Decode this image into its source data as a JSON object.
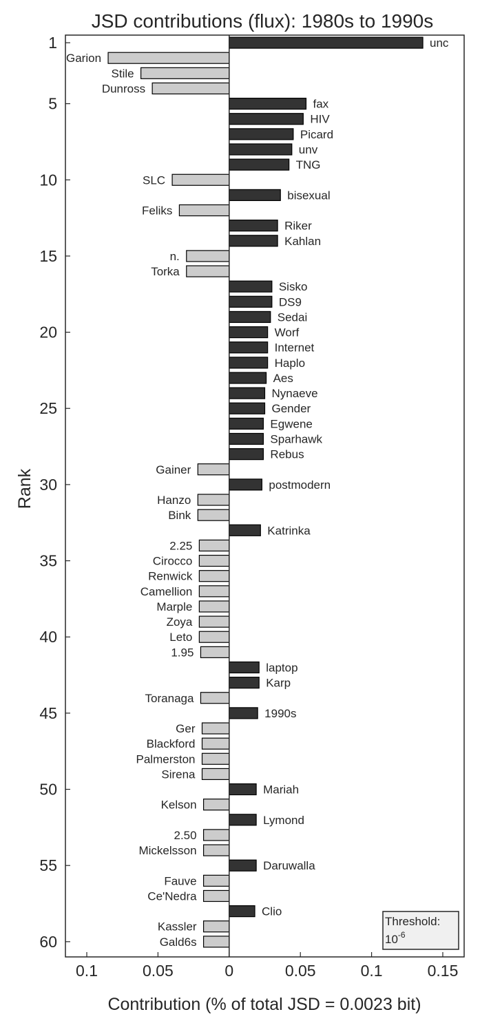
{
  "chart_data": {
    "type": "bar",
    "orientation": "horizontal",
    "title": "JSD contributions (flux): 1980s to 1990s",
    "xlabel": "Contribution (% of total JSD = 0.0023 bit)",
    "ylabel": "Rank",
    "xlim": [
      -0.115,
      0.165
    ],
    "ylim": [
      0.5,
      61
    ],
    "xticks": [
      {
        "value": -0.1,
        "label": "0.1"
      },
      {
        "value": -0.05,
        "label": "0.05"
      },
      {
        "value": 0,
        "label": "0"
      },
      {
        "value": 0.05,
        "label": "0.05"
      },
      {
        "value": 0.1,
        "label": "0.1"
      },
      {
        "value": 0.15,
        "label": "0.15"
      }
    ],
    "yticks": [
      1,
      5,
      10,
      15,
      20,
      25,
      30,
      35,
      40,
      45,
      50,
      55,
      60
    ],
    "grid": false,
    "colors": {
      "positive": "#333333",
      "negative": "#cccccc",
      "edge": "#000000"
    },
    "bars": [
      {
        "rank": 1,
        "label": "unc",
        "value": 0.136
      },
      {
        "rank": 2,
        "label": "Garion",
        "value": -0.085
      },
      {
        "rank": 3,
        "label": "Stile",
        "value": -0.062
      },
      {
        "rank": 4,
        "label": "Dunross",
        "value": -0.054
      },
      {
        "rank": 5,
        "label": "fax",
        "value": 0.054
      },
      {
        "rank": 6,
        "label": "HIV",
        "value": 0.052
      },
      {
        "rank": 7,
        "label": "Picard",
        "value": 0.045
      },
      {
        "rank": 8,
        "label": "unv",
        "value": 0.044
      },
      {
        "rank": 9,
        "label": "TNG",
        "value": 0.042
      },
      {
        "rank": 10,
        "label": "SLC",
        "value": -0.04
      },
      {
        "rank": 11,
        "label": "bisexual",
        "value": 0.036
      },
      {
        "rank": 12,
        "label": "Feliks",
        "value": -0.035
      },
      {
        "rank": 13,
        "label": "Riker",
        "value": 0.034
      },
      {
        "rank": 14,
        "label": "Kahlan",
        "value": 0.034
      },
      {
        "rank": 15,
        "label": "n.",
        "value": -0.03
      },
      {
        "rank": 16,
        "label": "Torka",
        "value": -0.03
      },
      {
        "rank": 17,
        "label": "Sisko",
        "value": 0.03
      },
      {
        "rank": 18,
        "label": "DS9",
        "value": 0.03
      },
      {
        "rank": 19,
        "label": "Sedai",
        "value": 0.029
      },
      {
        "rank": 20,
        "label": "Worf",
        "value": 0.027
      },
      {
        "rank": 21,
        "label": "Internet",
        "value": 0.027
      },
      {
        "rank": 22,
        "label": "Haplo",
        "value": 0.027
      },
      {
        "rank": 23,
        "label": "Aes",
        "value": 0.026
      },
      {
        "rank": 24,
        "label": "Nynaeve",
        "value": 0.025
      },
      {
        "rank": 25,
        "label": "Gender",
        "value": 0.025
      },
      {
        "rank": 26,
        "label": "Egwene",
        "value": 0.024
      },
      {
        "rank": 27,
        "label": "Sparhawk",
        "value": 0.024
      },
      {
        "rank": 28,
        "label": "Rebus",
        "value": 0.024
      },
      {
        "rank": 29,
        "label": "Gainer",
        "value": -0.022
      },
      {
        "rank": 30,
        "label": "postmodern",
        "value": 0.023
      },
      {
        "rank": 31,
        "label": "Hanzo",
        "value": -0.022
      },
      {
        "rank": 32,
        "label": "Bink",
        "value": -0.022
      },
      {
        "rank": 33,
        "label": "Katrinka",
        "value": 0.022
      },
      {
        "rank": 34,
        "label": "2.25",
        "value": -0.021
      },
      {
        "rank": 35,
        "label": "Cirocco",
        "value": -0.021
      },
      {
        "rank": 36,
        "label": "Renwick",
        "value": -0.021
      },
      {
        "rank": 37,
        "label": "Camellion",
        "value": -0.021
      },
      {
        "rank": 38,
        "label": "Marple",
        "value": -0.021
      },
      {
        "rank": 39,
        "label": "Zoya",
        "value": -0.021
      },
      {
        "rank": 40,
        "label": "Leto",
        "value": -0.021
      },
      {
        "rank": 41,
        "label": "1.95",
        "value": -0.02
      },
      {
        "rank": 42,
        "label": "laptop",
        "value": 0.021
      },
      {
        "rank": 43,
        "label": "Karp",
        "value": 0.021
      },
      {
        "rank": 44,
        "label": "Toranaga",
        "value": -0.02
      },
      {
        "rank": 45,
        "label": "1990s",
        "value": 0.02
      },
      {
        "rank": 46,
        "label": "Ger",
        "value": -0.019
      },
      {
        "rank": 47,
        "label": "Blackford",
        "value": -0.019
      },
      {
        "rank": 48,
        "label": "Palmerston",
        "value": -0.019
      },
      {
        "rank": 49,
        "label": "Sirena",
        "value": -0.019
      },
      {
        "rank": 50,
        "label": "Mariah",
        "value": 0.019
      },
      {
        "rank": 51,
        "label": "Kelson",
        "value": -0.018
      },
      {
        "rank": 52,
        "label": "Lymond",
        "value": 0.019
      },
      {
        "rank": 53,
        "label": "2.50",
        "value": -0.018
      },
      {
        "rank": 54,
        "label": "Mickelsson",
        "value": -0.018
      },
      {
        "rank": 55,
        "label": "Daruwalla",
        "value": 0.019
      },
      {
        "rank": 56,
        "label": "Fauve",
        "value": -0.018
      },
      {
        "rank": 57,
        "label": "Ce'Nedra",
        "value": -0.018
      },
      {
        "rank": 58,
        "label": "Clio",
        "value": 0.018
      },
      {
        "rank": 59,
        "label": "Kassler",
        "value": -0.018
      },
      {
        "rank": 60,
        "label": "Gald6s",
        "value": -0.018
      }
    ],
    "annotation": {
      "line1": "Threshold:",
      "base": "10",
      "exponent": "-6"
    }
  }
}
